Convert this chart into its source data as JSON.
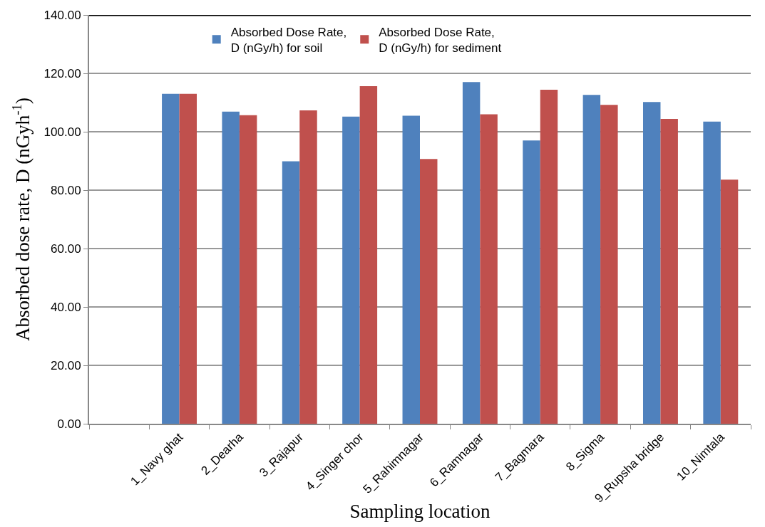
{
  "chart_data": {
    "type": "bar",
    "xlabel": "Sampling location",
    "ylabel": "Absorbed dose rate, D (nGyh$^{-1}$)",
    "categories": [
      null,
      "1_Navy ghat",
      "2_Dearha",
      "3_Rajapur",
      "4_Singer chor",
      "5_Rahimnagar",
      "6_Ramnagar",
      "7_Bagmara",
      "8_Sigma",
      "9_Rupsha bridge",
      "10_Nimtala"
    ],
    "series": [
      {
        "name": "Absorbed Dose Rate, D (nGy/h) for soil",
        "color": "#4f81bd",
        "values": [
          null,
          113.0,
          106.9,
          89.9,
          105.2,
          105.5,
          117.0,
          97.0,
          112.6,
          110.2,
          103.5
        ]
      },
      {
        "name": "Absorbed Dose Rate, D (nGy/h) for sediment",
        "color": "#c0504d",
        "values": [
          null,
          113.0,
          105.7,
          107.3,
          115.6,
          90.7,
          106.0,
          114.4,
          109.2,
          104.4,
          83.6
        ]
      }
    ],
    "ylim": [
      0,
      140
    ],
    "yticks": [
      {
        "value": 0,
        "label": "0.00"
      },
      {
        "value": 20,
        "label": "20.00"
      },
      {
        "value": 40,
        "label": "40.00"
      },
      {
        "value": 60,
        "label": "60.00"
      },
      {
        "value": 80,
        "label": "80.00"
      },
      {
        "value": 100,
        "label": "100.00"
      },
      {
        "value": 120,
        "label": "120.00"
      },
      {
        "value": 140,
        "label": "140.00"
      }
    ],
    "grid": "y",
    "legend": "top"
  }
}
